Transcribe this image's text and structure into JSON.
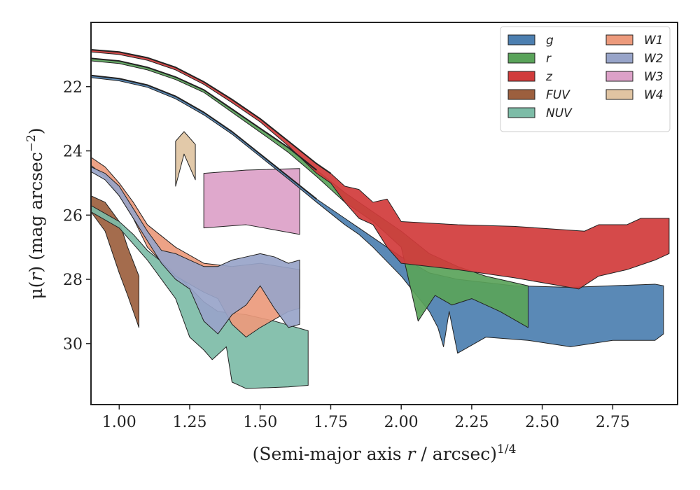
{
  "chart_data": {
    "type": "area",
    "xlabel_parts": [
      "(Semi-major axis ",
      "r",
      " / arcsec)",
      "1/4"
    ],
    "ylabel_parts": [
      "μ(",
      "r",
      ") (mag arcsec",
      "−2",
      ")"
    ],
    "xlim": [
      0.9,
      2.98
    ],
    "ylim": [
      31.9,
      20.0
    ],
    "y_inverted": true,
    "xticks": [
      1.0,
      1.25,
      1.5,
      1.75,
      2.0,
      2.25,
      2.5,
      2.75
    ],
    "xtick_labels": [
      "1.00",
      "1.25",
      "1.50",
      "1.75",
      "2.00",
      "2.25",
      "2.50",
      "2.75"
    ],
    "yticks": [
      22,
      24,
      26,
      28,
      30
    ],
    "ytick_labels": [
      "22",
      "24",
      "26",
      "28",
      "30"
    ],
    "grid": false,
    "legend_position": "top-right",
    "legend_columns": 2,
    "series": [
      {
        "name": "g",
        "color": "#4c7fb0",
        "upper": [
          [
            0.9,
            21.65
          ],
          [
            1.0,
            21.75
          ],
          [
            1.1,
            21.95
          ],
          [
            1.2,
            22.3
          ],
          [
            1.3,
            22.8
          ],
          [
            1.4,
            23.4
          ],
          [
            1.5,
            24.1
          ],
          [
            1.6,
            24.8
          ],
          [
            1.7,
            25.5
          ],
          [
            1.8,
            26.1
          ],
          [
            1.9,
            26.7
          ],
          [
            2.0,
            27.3
          ],
          [
            2.1,
            27.8
          ],
          [
            2.2,
            28.0
          ],
          [
            2.4,
            28.2
          ],
          [
            2.6,
            28.25
          ],
          [
            2.9,
            28.15
          ],
          [
            2.93,
            28.2
          ]
        ],
        "lower": [
          [
            0.9,
            21.72
          ],
          [
            1.0,
            21.82
          ],
          [
            1.1,
            22.02
          ],
          [
            1.2,
            22.38
          ],
          [
            1.3,
            22.88
          ],
          [
            1.4,
            23.48
          ],
          [
            1.5,
            24.18
          ],
          [
            1.6,
            24.88
          ],
          [
            1.7,
            25.6
          ],
          [
            1.8,
            26.3
          ],
          [
            1.85,
            26.6
          ],
          [
            1.9,
            27.0
          ],
          [
            2.0,
            27.9
          ],
          [
            2.1,
            29.0
          ],
          [
            2.13,
            29.5
          ],
          [
            2.15,
            30.1
          ],
          [
            2.17,
            29.0
          ],
          [
            2.2,
            30.3
          ],
          [
            2.3,
            29.8
          ],
          [
            2.45,
            29.9
          ],
          [
            2.6,
            30.1
          ],
          [
            2.75,
            29.9
          ],
          [
            2.9,
            29.9
          ],
          [
            2.93,
            29.7
          ]
        ]
      },
      {
        "name": "r",
        "color": "#5aa35a",
        "upper": [
          [
            0.9,
            21.12
          ],
          [
            1.0,
            21.2
          ],
          [
            1.1,
            21.4
          ],
          [
            1.2,
            21.7
          ],
          [
            1.3,
            22.1
          ],
          [
            1.4,
            22.7
          ],
          [
            1.5,
            23.3
          ],
          [
            1.6,
            23.9
          ],
          [
            1.7,
            24.6
          ],
          [
            1.8,
            25.3
          ],
          [
            1.9,
            25.9
          ],
          [
            2.0,
            26.5
          ],
          [
            2.1,
            27.2
          ],
          [
            2.2,
            27.6
          ],
          [
            2.3,
            27.9
          ],
          [
            2.45,
            28.2
          ]
        ],
        "lower": [
          [
            0.9,
            21.2
          ],
          [
            1.0,
            21.28
          ],
          [
            1.1,
            21.48
          ],
          [
            1.2,
            21.78
          ],
          [
            1.3,
            22.18
          ],
          [
            1.4,
            22.8
          ],
          [
            1.5,
            23.42
          ],
          [
            1.6,
            24.05
          ],
          [
            1.7,
            24.8
          ],
          [
            1.8,
            25.6
          ],
          [
            1.9,
            26.2
          ],
          [
            2.0,
            27.0
          ],
          [
            2.06,
            29.3
          ],
          [
            2.12,
            28.5
          ],
          [
            2.18,
            28.8
          ],
          [
            2.25,
            28.6
          ],
          [
            2.35,
            29.0
          ],
          [
            2.45,
            29.5
          ]
        ]
      },
      {
        "name": "z",
        "color": "#d13b3b",
        "upper": [
          [
            0.9,
            20.85
          ],
          [
            1.0,
            20.92
          ],
          [
            1.1,
            21.1
          ],
          [
            1.2,
            21.4
          ],
          [
            1.3,
            21.85
          ],
          [
            1.4,
            22.4
          ],
          [
            1.5,
            23.0
          ],
          [
            1.6,
            23.7
          ],
          [
            1.7,
            24.4
          ],
          [
            1.75,
            24.7
          ],
          [
            1.8,
            25.1
          ],
          [
            1.85,
            25.2
          ],
          [
            1.9,
            25.6
          ],
          [
            1.95,
            25.5
          ],
          [
            2.0,
            26.2
          ],
          [
            2.2,
            26.3
          ],
          [
            2.4,
            26.35
          ],
          [
            2.65,
            26.5
          ],
          [
            2.7,
            26.3
          ],
          [
            2.8,
            26.3
          ],
          [
            2.85,
            26.1
          ],
          [
            2.95,
            26.1
          ]
        ],
        "lower": [
          [
            0.9,
            20.92
          ],
          [
            1.0,
            21.0
          ],
          [
            1.1,
            21.18
          ],
          [
            1.2,
            21.48
          ],
          [
            1.3,
            21.93
          ],
          [
            1.4,
            22.5
          ],
          [
            1.5,
            23.1
          ],
          [
            1.6,
            23.85
          ],
          [
            1.7,
            24.7
          ],
          [
            1.75,
            25.0
          ],
          [
            1.8,
            25.6
          ],
          [
            1.85,
            26.1
          ],
          [
            1.9,
            26.3
          ],
          [
            1.95,
            27.0
          ],
          [
            2.0,
            27.5
          ],
          [
            2.2,
            27.7
          ],
          [
            2.4,
            27.95
          ],
          [
            2.63,
            28.3
          ],
          [
            2.7,
            27.9
          ],
          [
            2.8,
            27.7
          ],
          [
            2.9,
            27.4
          ],
          [
            2.95,
            27.2
          ]
        ]
      },
      {
        "name": "FUV",
        "color": "#9c5f3e",
        "upper": [
          [
            0.9,
            25.4
          ],
          [
            0.95,
            25.6
          ],
          [
            1.0,
            26.2
          ],
          [
            1.03,
            27.0
          ],
          [
            1.07,
            27.9
          ]
        ],
        "lower": [
          [
            0.9,
            25.9
          ],
          [
            0.95,
            26.5
          ],
          [
            1.0,
            27.8
          ],
          [
            1.03,
            28.5
          ],
          [
            1.07,
            29.5
          ]
        ]
      },
      {
        "name": "NUV",
        "color": "#7dbca7",
        "upper": [
          [
            0.9,
            25.7
          ],
          [
            1.0,
            26.2
          ],
          [
            1.05,
            26.6
          ],
          [
            1.1,
            27.1
          ],
          [
            1.2,
            27.8
          ],
          [
            1.3,
            28.7
          ],
          [
            1.35,
            29.0
          ],
          [
            1.45,
            29.1
          ],
          [
            1.55,
            29.3
          ],
          [
            1.67,
            29.6
          ]
        ],
        "lower": [
          [
            0.9,
            25.9
          ],
          [
            1.0,
            26.4
          ],
          [
            1.05,
            26.9
          ],
          [
            1.1,
            27.4
          ],
          [
            1.2,
            28.6
          ],
          [
            1.25,
            29.8
          ],
          [
            1.3,
            30.2
          ],
          [
            1.33,
            30.5
          ],
          [
            1.38,
            30.1
          ],
          [
            1.4,
            31.2
          ],
          [
            1.45,
            31.4
          ],
          [
            1.6,
            31.35
          ],
          [
            1.67,
            31.3
          ]
        ]
      },
      {
        "name": "W1",
        "color": "#ec9a7c",
        "upper": [
          [
            0.9,
            24.2
          ],
          [
            0.95,
            24.5
          ],
          [
            1.0,
            25.0
          ],
          [
            1.05,
            25.6
          ],
          [
            1.1,
            26.3
          ],
          [
            1.2,
            27.0
          ],
          [
            1.3,
            27.5
          ],
          [
            1.4,
            27.6
          ],
          [
            1.5,
            27.5
          ],
          [
            1.64,
            27.7
          ]
        ],
        "lower": [
          [
            0.9,
            24.45
          ],
          [
            0.95,
            24.8
          ],
          [
            1.0,
            25.4
          ],
          [
            1.05,
            26.1
          ],
          [
            1.1,
            27.0
          ],
          [
            1.2,
            27.9
          ],
          [
            1.3,
            28.4
          ],
          [
            1.35,
            28.6
          ],
          [
            1.4,
            29.4
          ],
          [
            1.45,
            29.8
          ],
          [
            1.5,
            29.5
          ],
          [
            1.6,
            29.0
          ],
          [
            1.64,
            28.9
          ]
        ]
      },
      {
        "name": "W2",
        "color": "#98a4c9",
        "upper": [
          [
            0.9,
            24.5
          ],
          [
            0.95,
            24.7
          ],
          [
            1.0,
            25.1
          ],
          [
            1.05,
            25.8
          ],
          [
            1.1,
            26.5
          ],
          [
            1.15,
            27.1
          ],
          [
            1.2,
            27.2
          ],
          [
            1.25,
            27.4
          ],
          [
            1.3,
            27.6
          ],
          [
            1.35,
            27.6
          ],
          [
            1.4,
            27.4
          ],
          [
            1.45,
            27.3
          ],
          [
            1.5,
            27.2
          ],
          [
            1.55,
            27.3
          ],
          [
            1.6,
            27.5
          ],
          [
            1.64,
            27.4
          ]
        ],
        "lower": [
          [
            0.9,
            24.65
          ],
          [
            0.95,
            24.9
          ],
          [
            1.0,
            25.4
          ],
          [
            1.05,
            26.1
          ],
          [
            1.1,
            26.8
          ],
          [
            1.15,
            27.5
          ],
          [
            1.2,
            28.0
          ],
          [
            1.25,
            28.3
          ],
          [
            1.3,
            29.3
          ],
          [
            1.35,
            29.7
          ],
          [
            1.4,
            29.1
          ],
          [
            1.45,
            28.8
          ],
          [
            1.5,
            28.2
          ],
          [
            1.55,
            28.9
          ],
          [
            1.6,
            29.5
          ],
          [
            1.64,
            29.4
          ]
        ]
      },
      {
        "name": "W3",
        "color": "#dca1c8",
        "upper": [
          [
            1.3,
            24.7
          ],
          [
            1.45,
            24.6
          ],
          [
            1.64,
            24.55
          ]
        ],
        "lower": [
          [
            1.3,
            26.4
          ],
          [
            1.45,
            26.3
          ],
          [
            1.64,
            26.6
          ]
        ]
      },
      {
        "name": "W4",
        "color": "#e0c4a2",
        "upper": [
          [
            1.2,
            23.7
          ],
          [
            1.23,
            23.4
          ],
          [
            1.27,
            23.8
          ]
        ],
        "lower": [
          [
            1.2,
            25.1
          ],
          [
            1.23,
            24.1
          ],
          [
            1.27,
            24.9
          ]
        ]
      }
    ],
    "draw_order": [
      "W4",
      "W3",
      "FUV",
      "NUV",
      "W1",
      "W2",
      "g",
      "r",
      "z"
    ]
  }
}
